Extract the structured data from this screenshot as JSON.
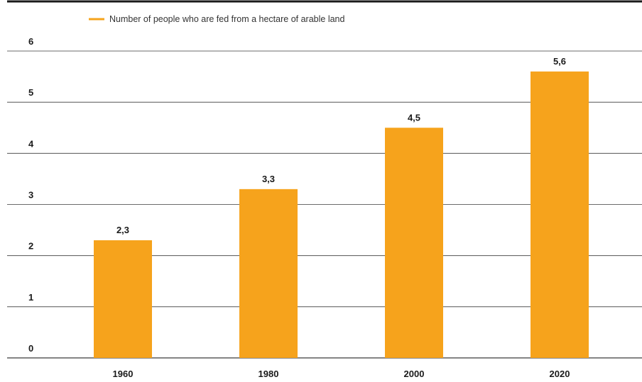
{
  "chart_data": {
    "type": "bar",
    "categories": [
      "1960",
      "1980",
      "2000",
      "2020"
    ],
    "series": [
      {
        "name": "Number of people who are fed from a hectare of arable land",
        "values": [
          2.3,
          3.3,
          4.5,
          5.6
        ],
        "value_labels": [
          "2,3",
          "3,3",
          "4,5",
          "5,6"
        ]
      }
    ],
    "y_ticks": [
      "0",
      "1",
      "2",
      "3",
      "4",
      "5",
      "6"
    ],
    "ylim": [
      0,
      6
    ],
    "grid": true,
    "legend_position": "top-left",
    "title": "",
    "xlabel": "",
    "ylabel": ""
  },
  "colors": {
    "bar": "#F6A31C",
    "gridline": "#3a3a3a",
    "text": "#1a1a1a"
  }
}
